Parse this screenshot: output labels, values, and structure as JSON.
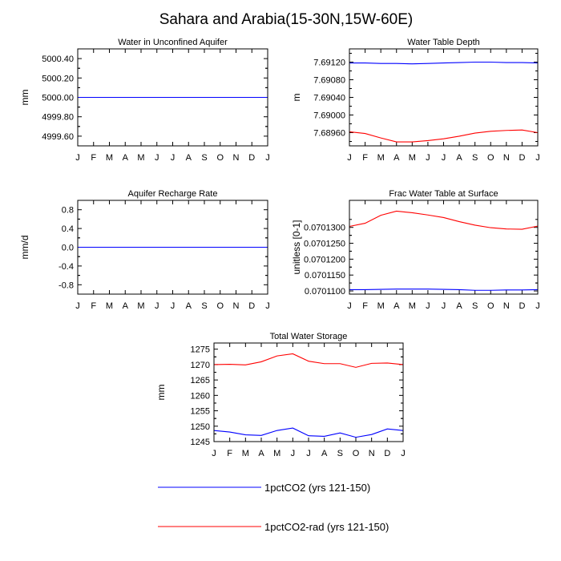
{
  "title": "Sahara and Arabia(15-30N,15W-60E)",
  "months": [
    "J",
    "F",
    "M",
    "A",
    "M",
    "J",
    "J",
    "A",
    "S",
    "O",
    "N",
    "D",
    "J"
  ],
  "series_colors": {
    "1pctCO2": "#0000ff",
    "1pctCO2-rad": "#ff0000"
  },
  "legend": [
    {
      "name": "1pctCO2 (yrs 121-150)",
      "color": "#0000ff"
    },
    {
      "name": "1pctCO2-rad (yrs 121-150)",
      "color": "#ff0000"
    }
  ],
  "chart_data": [
    {
      "type": "line",
      "title": "Water in Unconfined Aquifer",
      "ylabel": "mm",
      "ylim": [
        4999.5,
        5000.5
      ],
      "yticks": [
        4999.6,
        4999.8,
        5000.0,
        5000.2,
        5000.4
      ],
      "ytick_labels": [
        "4999.60",
        "4999.80",
        "5000.00",
        "5000.20",
        "5000.40"
      ],
      "categories": [
        "J",
        "F",
        "M",
        "A",
        "M",
        "J",
        "J",
        "A",
        "S",
        "O",
        "N",
        "D",
        "J"
      ],
      "series": [
        {
          "name": "1pctCO2 (yrs 121-150)",
          "values": [
            5000,
            5000,
            5000,
            5000,
            5000,
            5000,
            5000,
            5000,
            5000,
            5000,
            5000,
            5000,
            5000
          ]
        },
        {
          "name": "1pctCO2-rad (yrs 121-150)",
          "values": [
            5000,
            5000,
            5000,
            5000,
            5000,
            5000,
            5000,
            5000,
            5000,
            5000,
            5000,
            5000,
            5000
          ]
        }
      ]
    },
    {
      "type": "line",
      "title": "Water Table Depth",
      "ylabel": "m",
      "ylim": [
        7.6893,
        7.6915
      ],
      "yticks": [
        7.6896,
        7.69,
        7.6904,
        7.6908,
        7.6912
      ],
      "ytick_labels": [
        "7.68960",
        "7.69000",
        "7.69040",
        "7.69080",
        "7.69120"
      ],
      "categories": [
        "J",
        "F",
        "M",
        "A",
        "M",
        "J",
        "J",
        "A",
        "S",
        "O",
        "N",
        "D",
        "J"
      ],
      "series": [
        {
          "name": "1pctCO2 (yrs 121-150)",
          "values": [
            7.69118,
            7.69118,
            7.69117,
            7.69117,
            7.69116,
            7.69117,
            7.69118,
            7.69119,
            7.6912,
            7.6912,
            7.69119,
            7.69119,
            7.69118
          ]
        },
        {
          "name": "1pctCO2-rad (yrs 121-150)",
          "values": [
            7.68962,
            7.68958,
            7.68948,
            7.68939,
            7.68939,
            7.68942,
            7.68946,
            7.68952,
            7.68959,
            7.68963,
            7.68965,
            7.68966,
            7.6896
          ]
        }
      ]
    },
    {
      "type": "line",
      "title": "Aquifer Recharge Rate",
      "ylabel": "mm/d",
      "ylim": [
        -1.0,
        1.0
      ],
      "yticks": [
        -0.8,
        -0.4,
        0.0,
        0.4,
        0.8
      ],
      "ytick_labels": [
        "-0.8",
        "-0.4",
        "0.0",
        "0.4",
        "0.8"
      ],
      "categories": [
        "J",
        "F",
        "M",
        "A",
        "M",
        "J",
        "J",
        "A",
        "S",
        "O",
        "N",
        "D",
        "J"
      ],
      "series": [
        {
          "name": "1pctCO2 (yrs 121-150)",
          "values": [
            0,
            0,
            0,
            0,
            0,
            0,
            0,
            0,
            0,
            0,
            0,
            0,
            0
          ]
        },
        {
          "name": "1pctCO2-rad (yrs 121-150)",
          "values": [
            0,
            0,
            0,
            0,
            0,
            0,
            0,
            0,
            0,
            0,
            0,
            0,
            0
          ]
        }
      ]
    },
    {
      "type": "line",
      "title": "Frac Water Table at Surface",
      "ylabel": "unitless [0-1]",
      "ylim": [
        0.070109,
        0.0701385
      ],
      "yticks": [
        0.07011,
        0.070115,
        0.07012,
        0.070125,
        0.07013
      ],
      "ytick_labels": [
        "0.0701100",
        "0.0701150",
        "0.0701200",
        "0.0701250",
        "0.0701300"
      ],
      "categories": [
        "J",
        "F",
        "M",
        "A",
        "M",
        "J",
        "J",
        "A",
        "S",
        "O",
        "N",
        "D",
        "J"
      ],
      "series": [
        {
          "name": "1pctCO2 (yrs 121-150)",
          "values": [
            0.0701104,
            0.0701104,
            0.0701105,
            0.0701106,
            0.0701106,
            0.0701106,
            0.0701105,
            0.0701104,
            0.0701102,
            0.0701102,
            0.0701103,
            0.0701103,
            0.0701104
          ]
        },
        {
          "name": "1pctCO2-rad (yrs 121-150)",
          "values": [
            0.0701303,
            0.0701313,
            0.0701338,
            0.0701351,
            0.0701346,
            0.0701339,
            0.0701331,
            0.0701318,
            0.0701307,
            0.0701299,
            0.0701295,
            0.0701294,
            0.0701304
          ]
        }
      ]
    },
    {
      "type": "line",
      "title": "Total Water Storage",
      "ylabel": "mm",
      "ylim": [
        1245,
        1277
      ],
      "yticks": [
        1245,
        1250,
        1255,
        1260,
        1265,
        1270,
        1275
      ],
      "ytick_labels": [
        "1245",
        "1250",
        "1255",
        "1260",
        "1265",
        "1270",
        "1275"
      ],
      "categories": [
        "J",
        "F",
        "M",
        "A",
        "M",
        "J",
        "J",
        "A",
        "S",
        "O",
        "N",
        "D",
        "J"
      ],
      "series": [
        {
          "name": "1pctCO2 (yrs 121-150)",
          "values": [
            1248.6,
            1248.1,
            1247.2,
            1247.0,
            1248.6,
            1249.4,
            1246.9,
            1246.7,
            1247.8,
            1246.4,
            1247.3,
            1249.1,
            1248.6
          ]
        },
        {
          "name": "1pctCO2-rad (yrs 121-150)",
          "values": [
            1270.0,
            1270.1,
            1269.9,
            1270.9,
            1272.8,
            1273.5,
            1271.1,
            1270.3,
            1270.3,
            1269.1,
            1270.4,
            1270.5,
            1270.0
          ]
        }
      ]
    }
  ]
}
